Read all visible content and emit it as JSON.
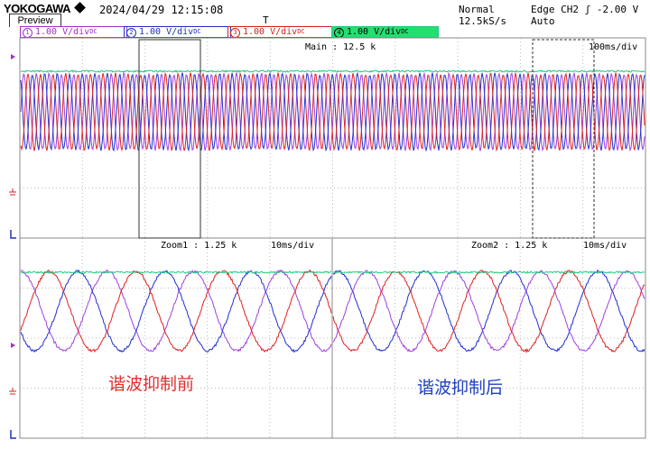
{
  "header": {
    "brand": "YOKOGAWA",
    "datetime": "2024/04/29 12:15:08",
    "preview_label": "Preview",
    "acq_mode": "Normal",
    "sample_rate": "12.5kS/s",
    "trigger": "Edge CH2 ʃ -2.00 V",
    "trigger_mode": "Auto",
    "marker": "T"
  },
  "channels": [
    {
      "num": "1",
      "scale": "1.00 V",
      "unit": "/div",
      "coupling": "DC",
      "color": "#a030c8"
    },
    {
      "num": "2",
      "scale": "1.00 V",
      "unit": "/div",
      "coupling": "DC",
      "color": "#2030c0"
    },
    {
      "num": "3",
      "scale": "1.00 V",
      "unit": "/div",
      "coupling": "DC",
      "color": "#d02020"
    },
    {
      "num": "4",
      "scale": "1.00 V",
      "unit": "/div",
      "coupling": "DC",
      "color": "#20e070"
    }
  ],
  "main": {
    "label": "Main : 12.5 k",
    "timebase": "100ms/div"
  },
  "zoom1": {
    "label": "Zoom1 : 1.25 k",
    "timebase": "10ms/div",
    "caption": "谐波抑制前",
    "caption_color": "#e03030"
  },
  "zoom2": {
    "label": "Zoom2 : 1.25 k",
    "timebase": "10ms/div",
    "caption": "谐波抑制后",
    "caption_color": "#2040c0"
  },
  "colors": {
    "purple": "#a040e0",
    "blue": "#2030d0",
    "red": "#e02020",
    "green": "#20c880",
    "grid": "#bbbbbb"
  }
}
